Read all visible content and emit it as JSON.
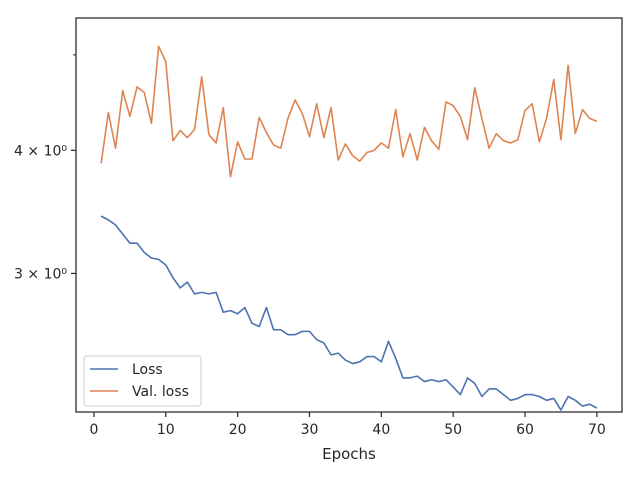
{
  "chart_data": {
    "type": "line",
    "xlabel": "Epochs",
    "ylabel": "",
    "xlim": [
      -2.5,
      73.5
    ],
    "ylim": [
      2.17,
      5.45
    ],
    "yscale": "log",
    "grid": false,
    "legend_position": "lower-left",
    "x_ticks": [
      0,
      10,
      20,
      30,
      40,
      50,
      60,
      70
    ],
    "x_tick_labels": [
      "0",
      "10",
      "20",
      "30",
      "40",
      "50",
      "60",
      "70"
    ],
    "y_ticks": [
      3,
      4
    ],
    "y_tick_labels": [
      "3 × 10⁰",
      "4 × 10⁰"
    ],
    "y_minor_ticks": [
      5
    ],
    "x": [
      1,
      2,
      3,
      4,
      5,
      6,
      7,
      8,
      9,
      10,
      11,
      12,
      13,
      14,
      15,
      16,
      17,
      18,
      19,
      20,
      21,
      22,
      23,
      24,
      25,
      26,
      27,
      28,
      29,
      30,
      31,
      32,
      33,
      34,
      35,
      36,
      37,
      38,
      39,
      40,
      41,
      42,
      43,
      44,
      45,
      46,
      47,
      48,
      49,
      50,
      51,
      52,
      53,
      54,
      55,
      56,
      57,
      58,
      59,
      60,
      61,
      62,
      63,
      64,
      65,
      66,
      67,
      68,
      69,
      70
    ],
    "series": [
      {
        "name": "Loss",
        "color": "#4c72b0",
        "values": [
          3.43,
          3.4,
          3.36,
          3.29,
          3.22,
          3.22,
          3.15,
          3.11,
          3.1,
          3.06,
          2.97,
          2.9,
          2.94,
          2.86,
          2.87,
          2.86,
          2.87,
          2.74,
          2.75,
          2.73,
          2.77,
          2.67,
          2.65,
          2.77,
          2.63,
          2.63,
          2.6,
          2.6,
          2.62,
          2.62,
          2.57,
          2.55,
          2.48,
          2.49,
          2.45,
          2.43,
          2.44,
          2.47,
          2.47,
          2.44,
          2.56,
          2.46,
          2.35,
          2.35,
          2.36,
          2.33,
          2.34,
          2.33,
          2.34,
          2.3,
          2.26,
          2.35,
          2.32,
          2.25,
          2.29,
          2.29,
          2.26,
          2.23,
          2.24,
          2.26,
          2.26,
          2.25,
          2.23,
          2.24,
          2.18,
          2.25,
          2.23,
          2.2,
          2.21,
          2.19
        ]
      },
      {
        "name": "Val. loss",
        "color": "#dd8452",
        "values": [
          3.88,
          4.37,
          4.02,
          4.6,
          4.33,
          4.64,
          4.58,
          4.26,
          5.1,
          4.92,
          4.09,
          4.19,
          4.12,
          4.2,
          4.75,
          4.15,
          4.07,
          4.42,
          3.76,
          4.08,
          3.92,
          3.92,
          4.32,
          4.17,
          4.05,
          4.02,
          4.31,
          4.5,
          4.36,
          4.13,
          4.46,
          4.12,
          4.42,
          3.91,
          4.06,
          3.95,
          3.9,
          3.98,
          4.0,
          4.07,
          4.02,
          4.4,
          3.94,
          4.16,
          3.91,
          4.22,
          4.09,
          4.01,
          4.48,
          4.44,
          4.33,
          4.1,
          4.63,
          4.31,
          4.02,
          4.16,
          4.09,
          4.07,
          4.1,
          4.39,
          4.46,
          4.08,
          4.31,
          4.72,
          4.1,
          4.88,
          4.16,
          4.4,
          4.31,
          4.28
        ]
      }
    ]
  }
}
